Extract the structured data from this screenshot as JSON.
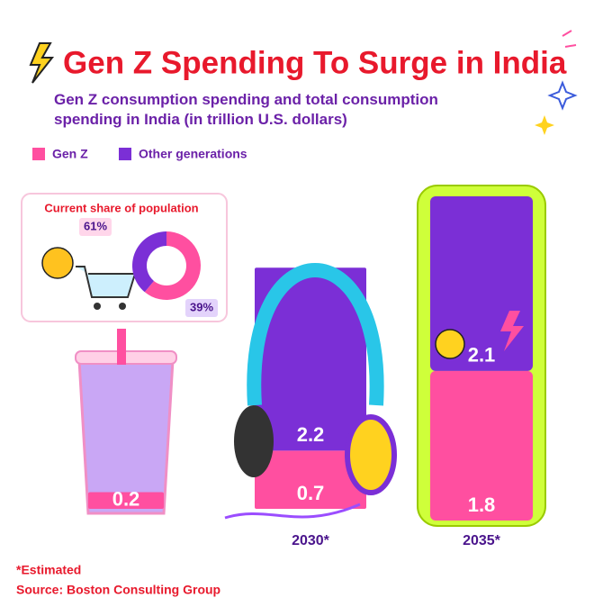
{
  "chart_data": [
    {
      "type": "bar",
      "stacked": true,
      "title": "Gen Z Spending To Surge in India",
      "subtitle": "Gen Z consumption spending and total consumption spending in India (in trillion U.S. dollars)",
      "categories": [
        null,
        "2030*",
        "2035*"
      ],
      "series": [
        {
          "name": "Gen Z",
          "color": "#ff4fa0",
          "values": [
            0.2,
            0.7,
            1.8
          ]
        },
        {
          "name": "Other generations",
          "color": "#7b2fd6",
          "values": [
            null,
            2.2,
            2.1
          ]
        }
      ],
      "legend": "top-left",
      "notes": [
        "*Estimated",
        "Source: Boston Consulting Group"
      ]
    },
    {
      "type": "pie",
      "donut": true,
      "title": "Current share of population",
      "colors": [
        "#ff4fa0",
        "#7b2fd6"
      ],
      "values": [
        61,
        39
      ],
      "value_labels": [
        "61%",
        "39%"
      ]
    }
  ]
}
